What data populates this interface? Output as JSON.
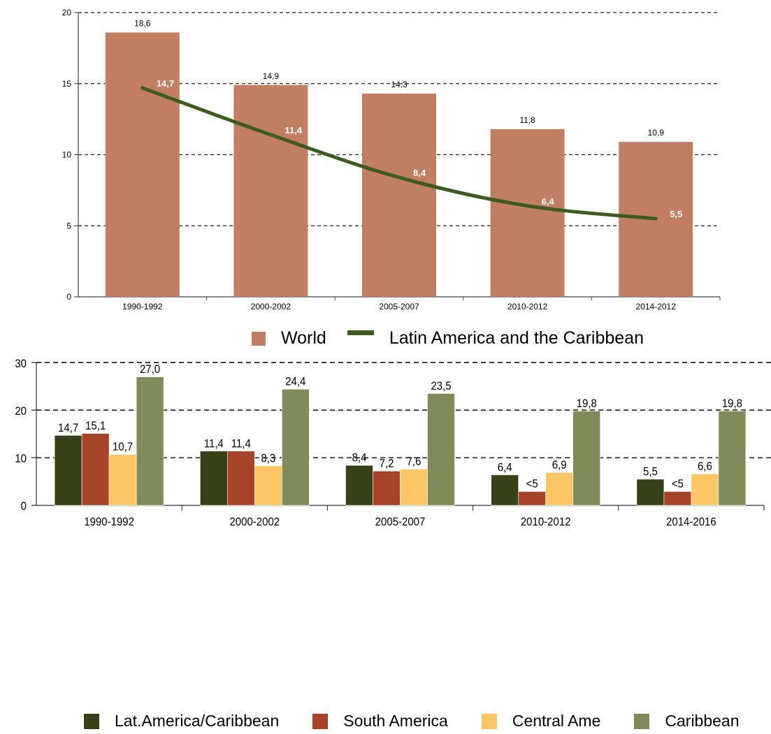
{
  "chart_data": [
    {
      "type": "bar+line",
      "categories": [
        "1990-1992",
        "2000-2002",
        "2005-2007",
        "2010-2012",
        "2014-2012"
      ],
      "series": [
        {
          "name": "World",
          "type": "bar",
          "values": [
            18.6,
            14.9,
            14.3,
            11.8,
            10.9
          ],
          "labels": [
            "18,6",
            "14,9",
            "14,3",
            "11,8",
            "10,9"
          ],
          "color": "#c27e62"
        },
        {
          "name": "Latin America and the Caribbean",
          "type": "line",
          "values": [
            14.7,
            11.4,
            8.4,
            6.4,
            5.5
          ],
          "labels": [
            "14,7",
            "11,4",
            "8,4",
            "6,4",
            "5,5"
          ],
          "color": "#3d5a1f"
        }
      ],
      "ylim": [
        0,
        20
      ],
      "yticks": [
        0,
        5,
        10,
        15,
        20
      ],
      "grid": "dashed horizontal",
      "legend": "bottom"
    },
    {
      "type": "bar",
      "categories": [
        "1990-1992",
        "2000-2002",
        "2005-2007",
        "2010-2012",
        "2014-2016"
      ],
      "series": [
        {
          "name": "Lat.America/Caribbean",
          "values": [
            14.7,
            11.4,
            8.4,
            6.4,
            5.5
          ],
          "labels": [
            "14,7",
            "11,4",
            "8,4",
            "6,4",
            "5,5"
          ],
          "color": "#374117"
        },
        {
          "name": "South America",
          "values": [
            15.1,
            11.4,
            7.2,
            2.9,
            2.9
          ],
          "labels": [
            "15,1",
            "11,4",
            "7,2",
            "<5",
            "<5"
          ],
          "color": "#a6442a"
        },
        {
          "name": "Central Ame",
          "values": [
            10.7,
            8.3,
            7.6,
            6.9,
            6.6
          ],
          "labels": [
            "10,7",
            "8,3",
            "7,6",
            "6,9",
            "6,6"
          ],
          "color": "#fcc666"
        },
        {
          "name": "Caribbean",
          "values": [
            27.0,
            24.4,
            23.5,
            19.8,
            19.8
          ],
          "labels": [
            "27,0",
            "24,4",
            "23,5",
            "19,8",
            "19,8"
          ],
          "color": "#808b5a"
        }
      ],
      "ylim": [
        0,
        30
      ],
      "yticks": [
        0,
        10,
        20,
        30
      ],
      "grid": "dashed horizontal",
      "legend": "bottom"
    }
  ]
}
